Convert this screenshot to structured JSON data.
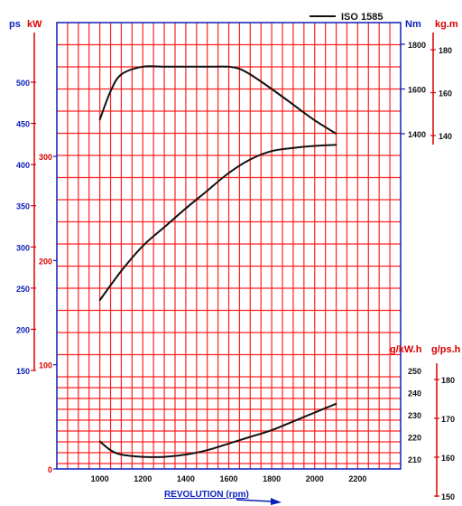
{
  "chart_data": {
    "type": "line",
    "legend": {
      "label": "ISO 1585",
      "position": "top-right"
    },
    "colors": {
      "grid": "#ff2020",
      "frame": "#0a1fb8",
      "curve": "#111111",
      "red_axis": "#d90000",
      "blue_axis": "#0a1fb8"
    },
    "x_axis": {
      "label": "REVOLUTION (rpm)",
      "range": [
        800,
        2400
      ],
      "ticks": [
        "1000",
        "1200",
        "1400",
        "1600",
        "1800",
        "2000",
        "2200"
      ]
    },
    "axes": {
      "ps": {
        "label": "ps",
        "ticks": [
          "150",
          "200",
          "250",
          "300",
          "350",
          "400",
          "450",
          "500"
        ]
      },
      "kw": {
        "label": "kW",
        "ticks": [
          "0",
          "100",
          "200",
          "300"
        ]
      },
      "nm": {
        "label": "Nm",
        "ticks": [
          "1400",
          "1600",
          "1800"
        ]
      },
      "kgm": {
        "label": "kg.m",
        "ticks": [
          "140",
          "160",
          "180"
        ]
      },
      "gkwh": {
        "label": "g/kW.h",
        "ticks": [
          "210",
          "220",
          "230",
          "240",
          "250"
        ]
      },
      "gpsh": {
        "label": "g/ps.h",
        "ticks": [
          "150",
          "160",
          "170",
          "180"
        ]
      }
    },
    "series": [
      {
        "x": [
          1000,
          1050,
          1100,
          1200,
          1300,
          1400,
          1500,
          1600,
          1650,
          1700,
          1800,
          1900,
          2000,
          2100
        ],
        "y": [
          1463,
          1590,
          1665,
          1700,
          1700,
          1700,
          1700,
          1700,
          1690,
          1665,
          1600,
          1530,
          1460,
          1400
        ]
      },
      {
        "x": [
          1000,
          1100,
          1200,
          1300,
          1400,
          1500,
          1600,
          1700,
          1800,
          1900,
          2000,
          2100
        ],
        "y": [
          162,
          190,
          214,
          232,
          250,
          267,
          284,
          297,
          305,
          308,
          310,
          311
        ]
      },
      {
        "x": [
          1000,
          1050,
          1100,
          1200,
          1300,
          1400,
          1500,
          1600,
          1700,
          1800,
          1900,
          2000,
          2100
        ],
        "y": [
          218,
          214,
          212,
          211,
          211,
          212,
          214,
          217,
          220,
          223,
          227,
          231,
          235
        ]
      }
    ]
  }
}
